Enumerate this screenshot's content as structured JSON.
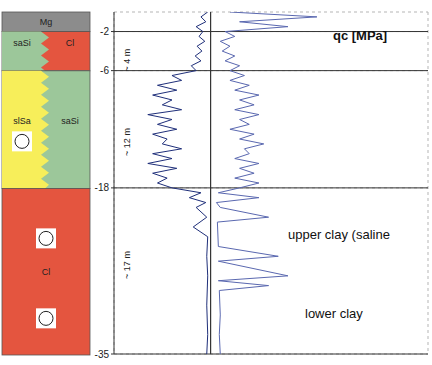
{
  "chart_data": {
    "type": "line",
    "xlim": [
      -10,
      22.5
    ],
    "xticks": [
      -10,
      -7.5,
      -5,
      -2.5,
      0,
      2.5,
      5,
      7.5,
      10,
      12.5,
      15,
      17.5,
      20,
      22.5
    ],
    "ylim": [
      -35,
      0
    ],
    "yticks": [
      -2,
      -6,
      -18,
      -35
    ],
    "tick_labels": "y",
    "grid": true,
    "reference_lines": [
      {
        "x": 0
      }
    ],
    "series": [
      {
        "color": "#1f2f7a",
        "marker": "none",
        "line_style": "solid",
        "y": [
          0,
          -0.5,
          -1,
          -1.5,
          -2,
          -2.5,
          -3,
          -3.5,
          -4,
          -4.5,
          -5,
          -5.5,
          -6,
          -6.5,
          -7,
          -7.5,
          -8,
          -8.5,
          -9,
          -9.5,
          -10,
          -10.5,
          -11,
          -11.5,
          -12,
          -12.5,
          -13,
          -13.5,
          -14,
          -14.5,
          -15,
          -15.5,
          -16,
          -16.5,
          -17,
          -17.5,
          -18,
          -18.5,
          -19,
          -19.5,
          -20,
          -21,
          -22,
          -23,
          -25,
          -27,
          -30,
          -33,
          -35
        ],
        "x": [
          -0.3,
          -1,
          -0.5,
          -1.5,
          -0.8,
          -1.2,
          -0.6,
          -1.4,
          -0.9,
          -1.6,
          -1,
          -2,
          -1.5,
          -4,
          -3,
          -5.5,
          -3.5,
          -6,
          -4,
          -5,
          -3,
          -6.5,
          -4,
          -5.5,
          -3.5,
          -6,
          -4.5,
          -5,
          -3,
          -6,
          -4,
          -6.5,
          -3.5,
          -6,
          -4.5,
          -5.5,
          -4,
          -1,
          -2.2,
          -0.5,
          -1.5,
          -0.4,
          -1.8,
          -0.3,
          -0.4,
          -0.3,
          -0.4,
          -0.3,
          -0.4
        ]
      },
      {
        "color": "#5a68b0",
        "marker": "none",
        "line_style": "solid",
        "y": [
          0,
          -0.5,
          -1,
          -1.5,
          -2,
          -2.5,
          -3,
          -3.5,
          -4,
          -4.5,
          -5,
          -5.5,
          -6,
          -6.5,
          -7,
          -7.5,
          -8,
          -8.5,
          -9,
          -9.5,
          -10,
          -10.5,
          -11,
          -11.5,
          -12,
          -12.5,
          -13,
          -13.5,
          -14,
          -14.5,
          -15,
          -15.5,
          -16,
          -16.5,
          -17,
          -17.5,
          -18,
          -18.5,
          -19,
          -19.5,
          -20,
          -21,
          -21.5,
          -24,
          -25,
          -25.5,
          -27,
          -27.5,
          -28,
          -28.5,
          -31,
          -33,
          -35
        ],
        "x": [
          2,
          11,
          3,
          8,
          1.5,
          2.5,
          1,
          2,
          1.2,
          2.5,
          1.5,
          3,
          2,
          3.5,
          2,
          4,
          2.5,
          5,
          3,
          4.5,
          2.5,
          5,
          3,
          4,
          2,
          4.5,
          3,
          5.5,
          3.5,
          4,
          2.5,
          5,
          3,
          4.5,
          2.5,
          5,
          3,
          0.8,
          5,
          0.6,
          1,
          6,
          0.7,
          0.8,
          7,
          0.8,
          8,
          0.8,
          6,
          0.9,
          1,
          0.9,
          1
        ]
      }
    ],
    "annotations": [
      "qc [MPa]",
      "upper clay (saline",
      "lower clay"
    ],
    "depth_labels": [
      "~ 4 m",
      "~ 12 m",
      "~ 17 m"
    ],
    "profile": [
      {
        "top": 0,
        "bottom": -2,
        "units": [
          {
            "label": "Mg",
            "color": "#8c8c8c"
          }
        ]
      },
      {
        "top": -2,
        "bottom": -6,
        "units": [
          {
            "label": "saSi",
            "color": "#9cc79a"
          },
          {
            "label": "Cl",
            "color": "#e4553f"
          }
        ]
      },
      {
        "top": -6,
        "bottom": -18,
        "units": [
          {
            "label": "slSa",
            "color": "#f7ee5a"
          },
          {
            "label": "saSi",
            "color": "#9cc79a"
          }
        ]
      },
      {
        "top": -18,
        "bottom": -35,
        "units": [
          {
            "label": "Cl",
            "color": "#e4553f"
          }
        ]
      }
    ]
  }
}
